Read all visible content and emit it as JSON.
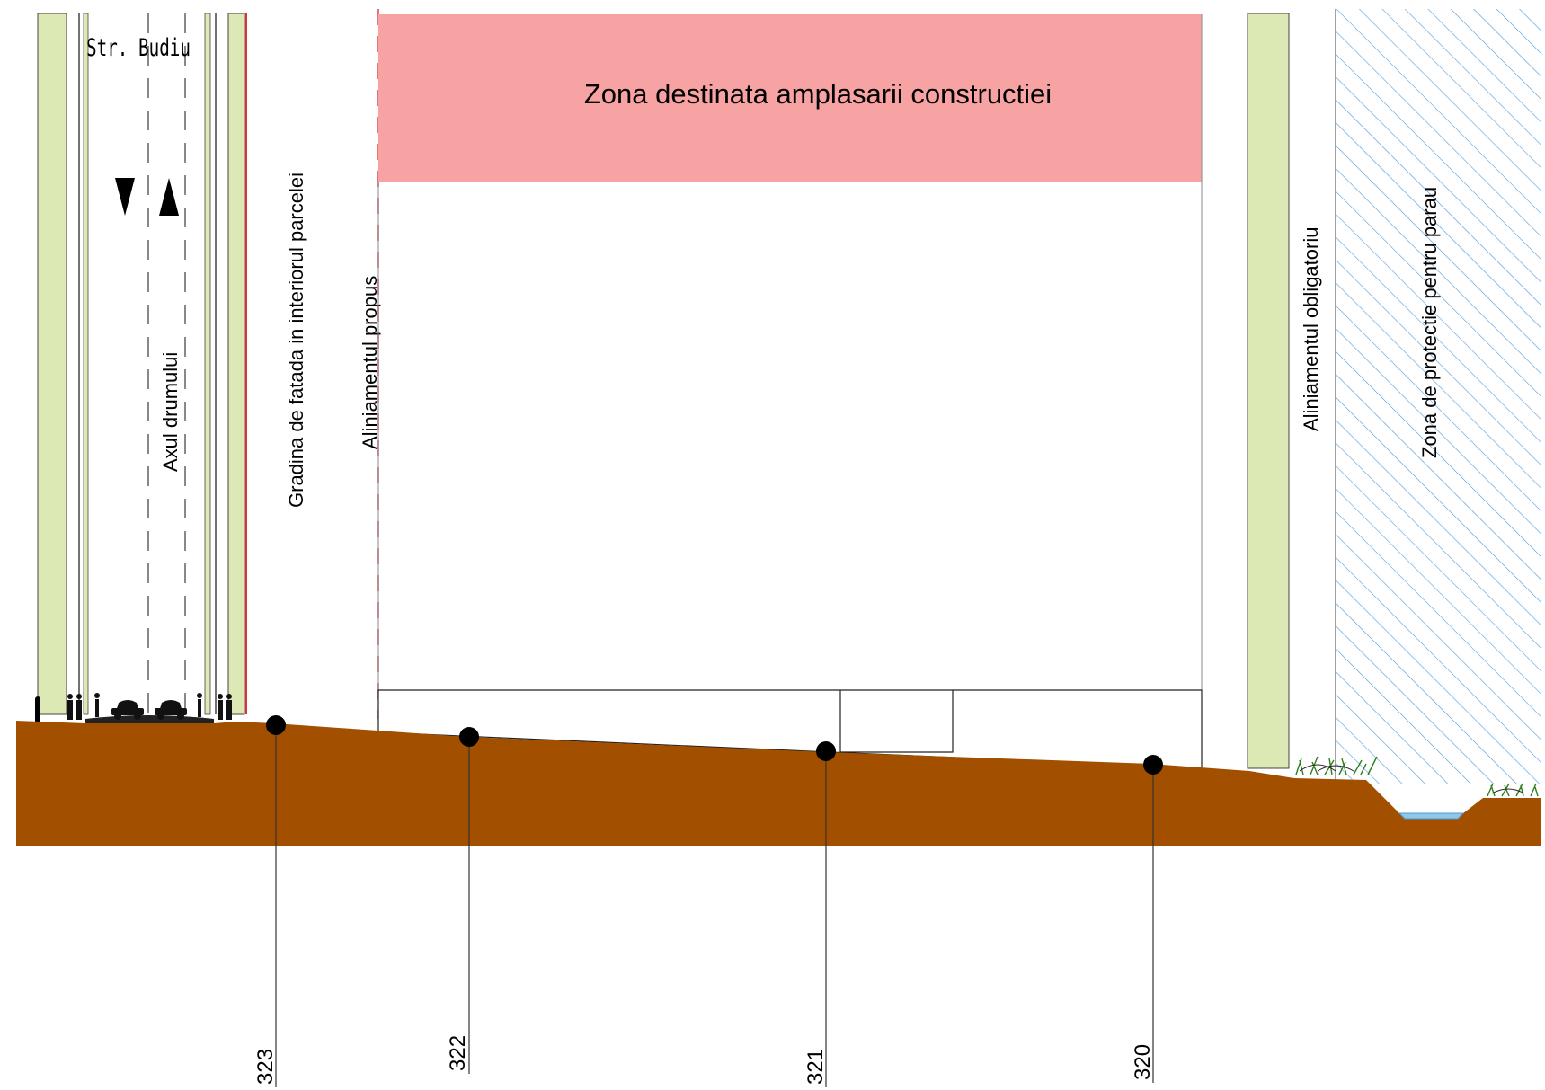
{
  "street": {
    "name": "Str. Budiu"
  },
  "labels": {
    "road_axis": "Axul drumului",
    "front_garden": "Gradina de fatada in interiorul parcelei",
    "proposed_alignment": "Aliniamentul propus",
    "construction_zone": "Zona destinata amplasarii constructiei",
    "mandatory_alignment": "Aliniamentul obligatoriu",
    "stream_protection_zone": "Zona de protectie pentru parau"
  },
  "elevations": [
    "323",
    "322",
    "321",
    "320"
  ],
  "colors": {
    "green_strip": "#dde9b5",
    "construction_zone": "#f8a3a3",
    "soil": "#a34f00",
    "hatch": "#4f9ad8",
    "water": "#8fc7e6",
    "grass": "#2f7d1f",
    "property_line": "#e03030"
  },
  "icons": {
    "road_direction_down": "arrow-down-icon",
    "road_direction_up": "arrow-up-icon",
    "vehicles": "car-icon",
    "pedestrians": "pedestrian-icon",
    "vegetation": "grass-icon",
    "survey_point": "level-marker-icon"
  }
}
